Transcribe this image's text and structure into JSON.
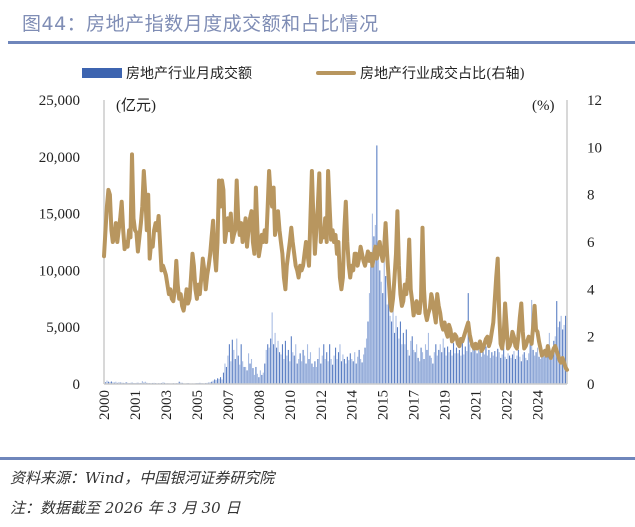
{
  "title": "图44：房地产指数月度成交额和占比情况",
  "footer": {
    "source": "资料来源：Wind，中国银河证券研究院",
    "note": "注：数据截至 2026 年 3 月 30 日"
  },
  "colors": {
    "bars": "#5b7fc4",
    "bars_light": "#a9bde3",
    "line": "#b8965f",
    "rule": "#6f86bb",
    "title": "#7f8db5"
  },
  "chart_data": {
    "type": "bar+line",
    "title": "",
    "left_unit": "(亿元)",
    "right_unit": "(%)",
    "legend_placement": "top",
    "grid": false,
    "x_start": "2000-01",
    "x_end": "2026-03",
    "x_frequency": "monthly",
    "x_tick_labels": [
      "2000",
      "2001",
      "2003",
      "2005",
      "2007",
      "2008",
      "2010",
      "2012",
      "2014",
      "2015",
      "2017",
      "2019",
      "2021",
      "2022",
      "2024"
    ],
    "y_left": {
      "range": [
        0,
        25000
      ],
      "ticks": [
        "0",
        "5,000",
        "10,000",
        "15,000",
        "20,000",
        "25,000"
      ]
    },
    "y_right": {
      "range": [
        0,
        12
      ],
      "ticks": [
        "0",
        "2",
        "4",
        "6",
        "8",
        "10",
        "12"
      ]
    },
    "series": [
      {
        "name": "房地产行业月成交额",
        "type": "bar",
        "axis": "left",
        "values": [
          250,
          150,
          300,
          200,
          180,
          220,
          150,
          120,
          200,
          100,
          150,
          130,
          120,
          100,
          90,
          150,
          110,
          80,
          100,
          120,
          90,
          80,
          100,
          110,
          80,
          90,
          250,
          120,
          200,
          100,
          90,
          80,
          70,
          90,
          100,
          80,
          60,
          70,
          80,
          90,
          150,
          100,
          70,
          60,
          80,
          50,
          60,
          70,
          60,
          70,
          80,
          200,
          120,
          100,
          60,
          50,
          70,
          80,
          60,
          50,
          60,
          50,
          70,
          80,
          90,
          100,
          80,
          70,
          60,
          90,
          100,
          120,
          150,
          200,
          300,
          400,
          350,
          500,
          450,
          600,
          400,
          1000,
          1800,
          1500,
          2500,
          3500,
          2000,
          3900,
          3000,
          2200,
          4000,
          2500,
          1700,
          3500,
          2000,
          1500,
          1500,
          1200,
          2700,
          1800,
          2200,
          1400,
          800,
          1500,
          900,
          600,
          1200,
          800,
          1000,
          1800,
          3000,
          3500,
          3200,
          4000,
          6300,
          3500,
          4500,
          3200,
          3800,
          2800,
          2600,
          3500,
          2200,
          3800,
          2500,
          3000,
          2000,
          4200,
          2800,
          2500,
          3500,
          1800,
          2200,
          2700,
          2000,
          3000,
          2500,
          1800,
          3500,
          2200,
          2800,
          1800,
          1500,
          2000,
          1500,
          2200,
          3200,
          1800,
          2500,
          3500,
          2200,
          2800,
          2000,
          3500,
          2200,
          1700,
          2500,
          3200,
          2200,
          2800,
          3500,
          2000,
          2600,
          2200,
          1800,
          2400,
          2100,
          2700,
          2200,
          2000,
          2800,
          1800,
          2400,
          3000,
          2200,
          1900,
          2600,
          3200,
          4000,
          5500,
          8000,
          11000,
          15000,
          13000,
          14000,
          21000,
          12000,
          10000,
          9000,
          8000,
          11000,
          9500,
          7000,
          9000,
          6000,
          5500,
          7500,
          4500,
          6000,
          5000,
          4000,
          5500,
          3500,
          4500,
          3500,
          4800,
          3000,
          2500,
          3800,
          4200,
          3000,
          2800,
          3500,
          2300,
          2000,
          3200,
          2800,
          2200,
          3500,
          3000,
          4500,
          2500,
          2300,
          1800,
          2800,
          3500,
          2500,
          3000,
          3500,
          2800,
          4000,
          3200,
          2500,
          3300,
          2800,
          3000,
          2500,
          3600,
          2700,
          3200,
          2700,
          3000,
          2500,
          3800,
          2600,
          3300,
          2900,
          8000,
          3500,
          2800,
          3200,
          3000,
          3200,
          2700,
          3500,
          2900,
          2400,
          3100,
          2600,
          3300,
          2500,
          3000,
          2300,
          2800,
          2500,
          2900,
          2400,
          3100,
          2800,
          2300,
          2600,
          3200,
          2400,
          2200,
          2700,
          2500,
          2300,
          2600,
          2900,
          2200,
          2500,
          3000,
          2400,
          2000,
          2600,
          2800,
          2300,
          2100,
          2700,
          3500,
          7400,
          3000,
          2500,
          2800,
          3200,
          2400,
          2200,
          2600,
          3000,
          2500,
          3000,
          3500,
          4500,
          2800,
          2600,
          3800,
          4200,
          7300,
          5000,
          5500,
          6000,
          4800,
          5200,
          6000,
          5800
        ]
      },
      {
        "name": "房地产行业成交占比(右轴)",
        "type": "line",
        "axis": "right",
        "values": [
          5.4,
          6.5,
          7.5,
          8.2,
          8.0,
          6.5,
          6.0,
          6.2,
          6.8,
          6.0,
          6.5,
          7.0,
          7.7,
          6.5,
          5.7,
          6.0,
          5.8,
          6.5,
          6.2,
          9.7,
          7.0,
          6.5,
          6.4,
          5.6,
          6.2,
          6.8,
          7.5,
          9.0,
          8.0,
          6.5,
          8.0,
          5.3,
          6.0,
          5.8,
          6.5,
          6.8,
          6.5,
          7.1,
          6.0,
          4.8,
          5.0,
          4.8,
          4.6,
          4.2,
          3.8,
          4.0,
          3.6,
          3.5,
          4.0,
          5.2,
          4.2,
          3.6,
          3.8,
          3.3,
          3.1,
          3.5,
          4.0,
          3.4,
          3.6,
          4.5,
          5.5,
          5.0,
          4.0,
          3.6,
          4.2,
          3.8,
          4.5,
          5.3,
          4.8,
          4.0,
          4.6,
          5.0,
          5.5,
          6.2,
          6.9,
          5.5,
          4.8,
          6.0,
          8.6,
          7.5,
          8.6,
          8.2,
          6.0,
          6.5,
          7.0,
          6.5,
          7.2,
          6.0,
          6.3,
          6.5,
          8.6,
          7.0,
          6.3,
          6.8,
          6.0,
          6.5,
          7.0,
          5.8,
          6.5,
          7.0,
          7.3,
          6.0,
          5.5,
          8.3,
          6.5,
          5.4,
          5.8,
          6.3,
          6.0,
          6.5,
          6.0,
          7.5,
          9.0,
          8.0,
          7.5,
          8.3,
          6.3,
          6.8,
          7.3,
          6.5,
          6.0,
          5.5,
          4.5,
          4.0,
          5.0,
          5.5,
          6.0,
          6.6,
          6.0,
          5.5,
          5.0,
          4.8,
          4.5,
          5.0,
          4.8,
          5.0,
          5.5,
          6.0,
          5.5,
          5.0,
          7.0,
          9.0,
          7.0,
          5.5,
          6.5,
          7.5,
          8.9,
          6.0,
          6.5,
          6.2,
          7.0,
          6.0,
          9.0,
          7.5,
          6.1,
          6.5,
          6.0,
          6.3,
          5.5,
          6.0,
          4.5,
          4.0,
          4.5,
          6.5,
          7.7,
          6.0,
          5.0,
          4.5,
          5.0,
          4.8,
          5.5,
          5.5,
          5.0,
          5.3,
          5.8,
          5.5,
          5.2,
          5.0,
          5.3,
          5.6,
          5.2,
          5.5,
          5.0,
          5.4,
          5.8,
          5.3,
          5.6,
          6.0,
          5.5,
          5.2,
          5.8,
          6.8,
          5.5,
          4.5,
          3.5,
          3.1,
          3.6,
          4.5,
          5.5,
          7.3,
          5.0,
          3.8,
          3.3,
          3.5,
          4.2,
          3.8,
          4.5,
          6.1,
          4.0,
          3.5,
          2.9,
          3.3,
          3.5,
          3.0,
          3.0,
          3.6,
          6.6,
          4.0,
          3.0,
          2.7,
          3.0,
          3.2,
          3.8,
          3.5,
          3.0,
          2.6,
          3.8,
          3.3,
          3.0,
          2.5,
          2.3,
          2.6,
          2.2,
          2.0,
          2.5,
          2.3,
          1.8,
          1.9,
          2.1,
          2.0,
          1.7,
          1.6,
          1.9,
          1.8,
          2.0,
          2.2,
          2.4,
          2.6,
          2.1,
          1.8,
          1.6,
          1.5,
          1.7,
          1.5,
          1.6,
          1.8,
          1.4,
          1.5,
          1.7,
          1.9,
          2.0,
          1.6,
          1.8,
          2.2,
          2.6,
          3.5,
          4.5,
          5.3,
          3.0,
          1.7,
          1.5,
          2.0,
          3.4,
          2.5,
          1.5,
          1.6,
          1.8,
          2.2,
          2.0,
          1.6,
          1.5,
          2.0,
          2.8,
          3.4,
          2.2,
          1.5,
          1.6,
          1.8,
          2.0,
          1.9,
          1.7,
          2.4,
          3.3,
          2.3,
          2.2,
          1.8,
          1.5,
          1.2,
          1.3,
          1.4,
          1.2,
          1.6,
          1.3,
          1.1,
          1.3,
          1.5,
          1.6,
          1.4,
          1.2,
          1.0,
          0.9,
          1.1,
          0.9,
          0.7,
          0.6
        ]
      }
    ]
  }
}
